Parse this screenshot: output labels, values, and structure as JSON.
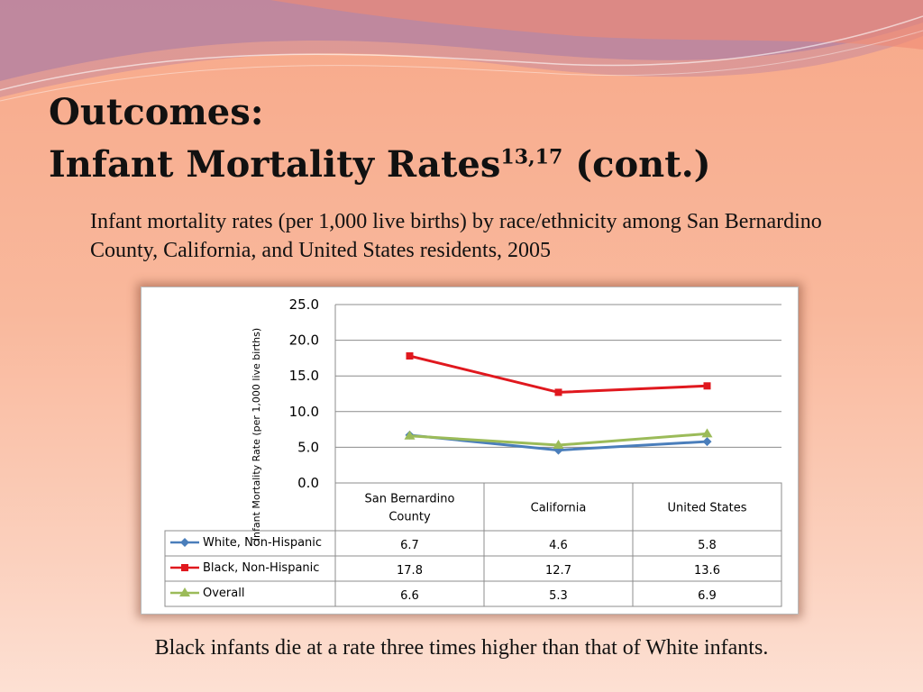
{
  "slide": {
    "title_line1": "Outcomes:",
    "title_line2": "Infant Mortality Rates",
    "title_superscript": "13,17",
    "title_suffix": " (cont.)",
    "subtitle": "Infant mortality rates (per 1,000 live births) by race/ethnicity among San Bernardino County, California, and United States residents, 2005",
    "footer": "Black infants die at a rate three times higher than that of White infants."
  },
  "chart_data": {
    "type": "line",
    "title": "",
    "ylabel": "Infant Mortality Rate (per 1,000 live births)",
    "xlabel": "",
    "categories": [
      "San Bernardino County",
      "California",
      "United States"
    ],
    "category_lines": [
      [
        "San Bernardino",
        "County"
      ],
      [
        "California"
      ],
      [
        "United States"
      ]
    ],
    "ylim": [
      0,
      25
    ],
    "yticks": [
      "0.0",
      "5.0",
      "10.0",
      "15.0",
      "20.0",
      "25.0"
    ],
    "grid": true,
    "legend": "data-table-left",
    "series": [
      {
        "name": "White, Non-Hispanic",
        "values": [
          6.7,
          4.6,
          5.8
        ],
        "labels": [
          "6.7",
          "4.6",
          "5.8"
        ],
        "color": "#4a7ebb",
        "marker": "diamond"
      },
      {
        "name": "Black, Non-Hispanic",
        "values": [
          17.8,
          12.7,
          13.6
        ],
        "labels": [
          "17.8",
          "12.7",
          "13.6"
        ],
        "color": "#e0181e",
        "marker": "square"
      },
      {
        "name": "Overall",
        "values": [
          6.6,
          5.3,
          6.9
        ],
        "labels": [
          "6.6",
          "5.3",
          "6.9"
        ],
        "color": "#9bbb59",
        "marker": "triangle"
      }
    ]
  }
}
